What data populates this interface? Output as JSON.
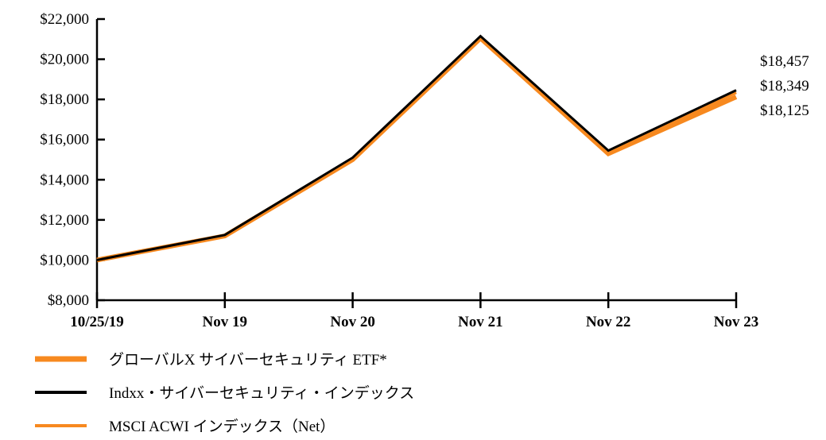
{
  "chart_data": {
    "type": "line",
    "title": "",
    "xlabel": "",
    "ylabel": "",
    "categories": [
      "10/25/19",
      "Nov 19",
      "Nov 20",
      "Nov 21",
      "Nov 22",
      "Nov 23"
    ],
    "ylim": [
      8000,
      22000
    ],
    "yticks": [
      8000,
      10000,
      12000,
      14000,
      16000,
      18000,
      20000,
      22000
    ],
    "ytick_labels": [
      "$8,000",
      "$10,000",
      "$12,000",
      "$14,000",
      "$16,000",
      "$18,000",
      "$20,000",
      "$22,000"
    ],
    "grid": false,
    "legend_position": "bottom-left",
    "series": [
      {
        "name": "グローバルX サイバーセキュリティ ETF*",
        "color": "#F7891F",
        "values": [
          10000,
          11200,
          15000,
          21050,
          15300,
          18125
        ]
      },
      {
        "name": "Indxx・サイバーセキュリティ・インデックス",
        "color": "#000000",
        "values": [
          10000,
          11250,
          15100,
          21150,
          15450,
          18457
        ]
      },
      {
        "name": "MSCI ACWI インデックス（Net）",
        "color": "#F7891F",
        "values": [
          10000,
          11230,
          15060,
          21100,
          15380,
          18349
        ]
      }
    ],
    "end_labels": [
      "$18,457",
      "$18,349",
      "$18,125"
    ]
  }
}
